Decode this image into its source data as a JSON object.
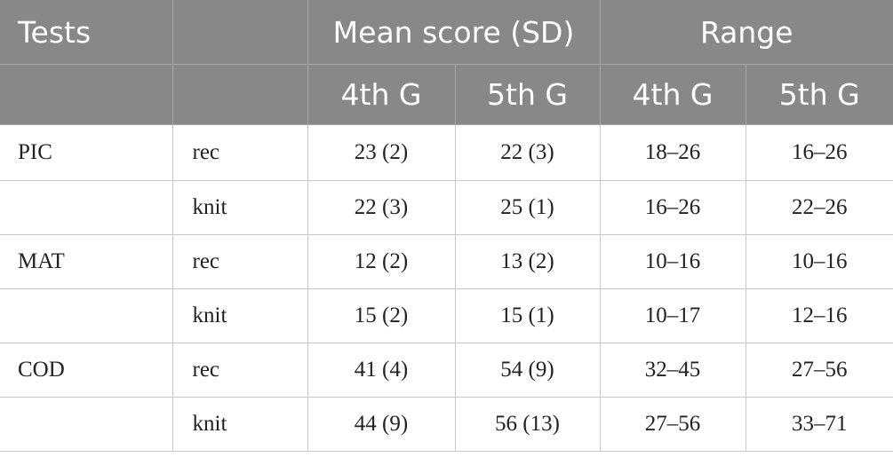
{
  "header": {
    "tests": "Tests",
    "blank": "",
    "mean_score": "Mean score (SD)",
    "range": "Range",
    "sub_4th_mean": "4th G",
    "sub_5th_mean": "5th G",
    "sub_4th_range": "4th G",
    "sub_5th_range": "5th G"
  },
  "rows": [
    {
      "test": "PIC",
      "condition": "rec",
      "mean_4th": "23 (2)",
      "mean_5th": "22 (3)",
      "range_4th": "18–26",
      "range_5th": "16–26"
    },
    {
      "test": "",
      "condition": "knit",
      "mean_4th": "22 (3)",
      "mean_5th": "25 (1)",
      "range_4th": "16–26",
      "range_5th": "22–26"
    },
    {
      "test": "MAT",
      "condition": "rec",
      "mean_4th": "12 (2)",
      "mean_5th": "13 (2)",
      "range_4th": "10–16",
      "range_5th": "10–16"
    },
    {
      "test": "",
      "condition": "knit",
      "mean_4th": "15 (2)",
      "mean_5th": "15 (1)",
      "range_4th": "10–17",
      "range_5th": "12–16"
    },
    {
      "test": "COD",
      "condition": "rec",
      "mean_4th": "41 (4)",
      "mean_5th": "54 (9)",
      "range_4th": "32–45",
      "range_5th": "27–56"
    },
    {
      "test": "",
      "condition": "knit",
      "mean_4th": "44 (9)",
      "mean_5th": "56 (13)",
      "range_4th": "27–56",
      "range_5th": "33–71"
    }
  ],
  "colors": {
    "header_bg": "#888888",
    "header_text": "#ffffff",
    "grid_line": "#c8c8c8",
    "body_text": "#222222"
  }
}
